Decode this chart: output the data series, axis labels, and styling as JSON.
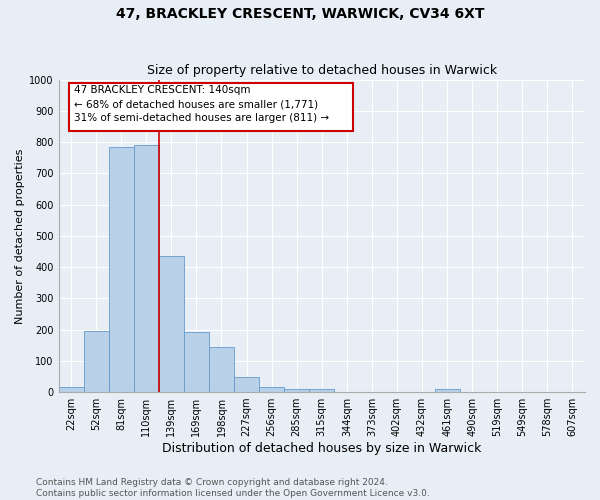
{
  "title": "47, BRACKLEY CRESCENT, WARWICK, CV34 6XT",
  "subtitle": "Size of property relative to detached houses in Warwick",
  "xlabel": "Distribution of detached houses by size in Warwick",
  "ylabel": "Number of detached properties",
  "bar_color": "#b8d0e8",
  "bar_edge_color": "#6699cc",
  "background_color": "#e8eef5",
  "grid_color": "#ffffff",
  "categories": [
    "22sqm",
    "52sqm",
    "81sqm",
    "110sqm",
    "139sqm",
    "169sqm",
    "198sqm",
    "227sqm",
    "256sqm",
    "285sqm",
    "315sqm",
    "344sqm",
    "373sqm",
    "402sqm",
    "432sqm",
    "461sqm",
    "490sqm",
    "519sqm",
    "549sqm",
    "578sqm",
    "607sqm"
  ],
  "values": [
    15,
    197,
    783,
    789,
    435,
    192,
    143,
    48,
    17,
    9,
    9,
    0,
    0,
    0,
    0,
    9,
    0,
    0,
    0,
    0,
    0
  ],
  "ylim": [
    0,
    1000
  ],
  "yticks": [
    0,
    100,
    200,
    300,
    400,
    500,
    600,
    700,
    800,
    900,
    1000
  ],
  "property_bar_index": 4,
  "annotation_text_line1": "47 BRACKLEY CRESCENT: 140sqm",
  "annotation_text_line2": "← 68% of detached houses are smaller (1,771)",
  "annotation_text_line3": "31% of semi-detached houses are larger (811) →",
  "annotation_box_color": "#ffffff",
  "annotation_box_edge_color": "#cc0000",
  "footer_line1": "Contains HM Land Registry data © Crown copyright and database right 2024.",
  "footer_line2": "Contains public sector information licensed under the Open Government Licence v3.0.",
  "title_fontsize": 10,
  "subtitle_fontsize": 9,
  "ylabel_fontsize": 8,
  "xlabel_fontsize": 9,
  "tick_fontsize": 7,
  "annotation_fontsize": 7.5,
  "footer_fontsize": 6.5
}
